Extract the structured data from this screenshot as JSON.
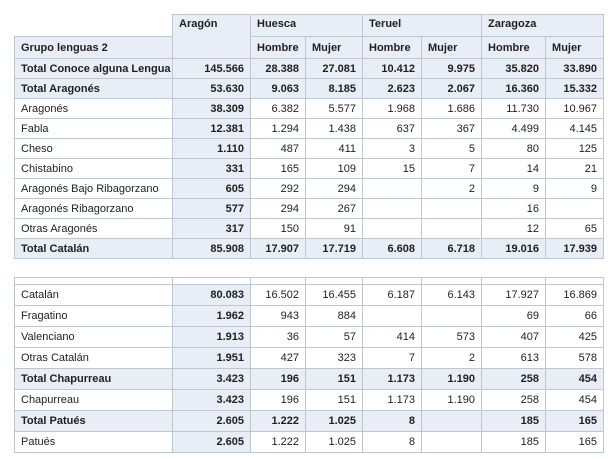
{
  "colors": {
    "border": "#bdc7d1",
    "shaded_fill": "#e9eef6",
    "text": "#1f1f1f",
    "background": "#ffffff"
  },
  "table1": {
    "corner_label": "Grupo lenguas 2",
    "col_groups": [
      {
        "label": "Aragón",
        "span": 1
      },
      {
        "label": "Huesca",
        "span": 2
      },
      {
        "label": "Teruel",
        "span": 2
      },
      {
        "label": "Zaragoza",
        "span": 2
      }
    ],
    "sub_headers": [
      "Hombre",
      "Mujer",
      "Hombre",
      "Mujer",
      "Hombre",
      "Mujer"
    ],
    "columns": [
      "Aragón",
      "Huesca Hombre",
      "Huesca Mujer",
      "Teruel Hombre",
      "Teruel Mujer",
      "Zaragoza Hombre",
      "Zaragoza Mujer"
    ],
    "rows": [
      {
        "label": "Total Conoce alguna Lengua",
        "total": true,
        "values": [
          "145.566",
          "28.388",
          "27.081",
          "10.412",
          "9.975",
          "35.820",
          "33.890"
        ]
      },
      {
        "label": "Total Aragonés",
        "total": true,
        "values": [
          "53.630",
          "9.063",
          "8.185",
          "2.623",
          "2.067",
          "16.360",
          "15.332"
        ]
      },
      {
        "label": "Aragonés",
        "total": false,
        "values": [
          "38.309",
          "6.382",
          "5.577",
          "1.968",
          "1.686",
          "11.730",
          "10.967"
        ]
      },
      {
        "label": "Fabla",
        "total": false,
        "values": [
          "12.381",
          "1.294",
          "1.438",
          "637",
          "367",
          "4.499",
          "4.145"
        ]
      },
      {
        "label": "Cheso",
        "total": false,
        "values": [
          "1.110",
          "487",
          "411",
          "3",
          "5",
          "80",
          "125"
        ]
      },
      {
        "label": "Chistabino",
        "total": false,
        "values": [
          "331",
          "165",
          "109",
          "15",
          "7",
          "14",
          "21"
        ]
      },
      {
        "label": "Aragonés Bajo Ribagorzano",
        "total": false,
        "values": [
          "605",
          "292",
          "294",
          "",
          "2",
          "9",
          "9"
        ]
      },
      {
        "label": "Aragonés Ribagorzano",
        "total": false,
        "values": [
          "577",
          "294",
          "267",
          "",
          "",
          "16",
          ""
        ]
      },
      {
        "label": "Otras Aragonés",
        "total": false,
        "values": [
          "317",
          "150",
          "91",
          "",
          "",
          "12",
          "65"
        ]
      },
      {
        "label": "Total Catalán",
        "total": true,
        "values": [
          "85.908",
          "17.907",
          "17.719",
          "6.608",
          "6.718",
          "19.016",
          "17.939"
        ]
      }
    ]
  },
  "table2": {
    "rows": [
      {
        "label": "Catalán",
        "total": false,
        "values": [
          "80.083",
          "16.502",
          "16.455",
          "6.187",
          "6.143",
          "17.927",
          "16.869"
        ]
      },
      {
        "label": "Fragatino",
        "total": false,
        "values": [
          "1.962",
          "943",
          "884",
          "",
          "",
          "69",
          "66"
        ]
      },
      {
        "label": "Valenciano",
        "total": false,
        "values": [
          "1.913",
          "36",
          "57",
          "414",
          "573",
          "407",
          "425"
        ]
      },
      {
        "label": "Otras Catalán",
        "total": false,
        "values": [
          "1.951",
          "427",
          "323",
          "7",
          "2",
          "613",
          "578"
        ]
      },
      {
        "label": "Total Chapurreau",
        "total": true,
        "values": [
          "3.423",
          "196",
          "151",
          "1.173",
          "1.190",
          "258",
          "454"
        ]
      },
      {
        "label": "Chapurreau",
        "total": false,
        "values": [
          "3.423",
          "196",
          "151",
          "1.173",
          "1.190",
          "258",
          "454"
        ]
      },
      {
        "label": "Total Patués",
        "total": true,
        "values": [
          "2.605",
          "1.222",
          "1.025",
          "8",
          "",
          "185",
          "165"
        ]
      },
      {
        "label": "Patués",
        "total": false,
        "values": [
          "2.605",
          "1.222",
          "1.025",
          "8",
          "",
          "185",
          "165"
        ]
      }
    ]
  }
}
